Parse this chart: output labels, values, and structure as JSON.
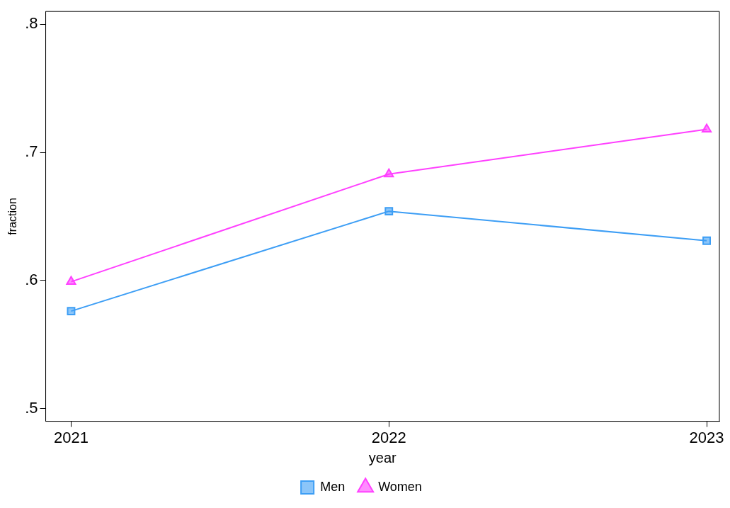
{
  "chart_data": {
    "type": "line",
    "xlabel": "year",
    "ylabel": "fraction",
    "x": [
      2021,
      2022,
      2023
    ],
    "series": [
      {
        "name": "Men",
        "color": "#3d9ef5",
        "marker": "square",
        "values": [
          0.576,
          0.654,
          0.631
        ]
      },
      {
        "name": "Women",
        "color": "#ff40ff",
        "marker": "triangle",
        "values": [
          0.599,
          0.683,
          0.718
        ]
      }
    ],
    "xlim": [
      2020.92,
      2023.04
    ],
    "xticks": [
      2021,
      2022,
      2023
    ],
    "ylim": [
      0.49,
      0.81
    ],
    "yticks": [
      {
        "value": 0.5,
        "label": ".5"
      },
      {
        "value": 0.6,
        "label": ".6"
      },
      {
        "value": 0.7,
        "label": ".7"
      },
      {
        "value": 0.8,
        "label": ".8"
      }
    ],
    "grid": false,
    "legend": "bottom",
    "line_style": "solid"
  }
}
